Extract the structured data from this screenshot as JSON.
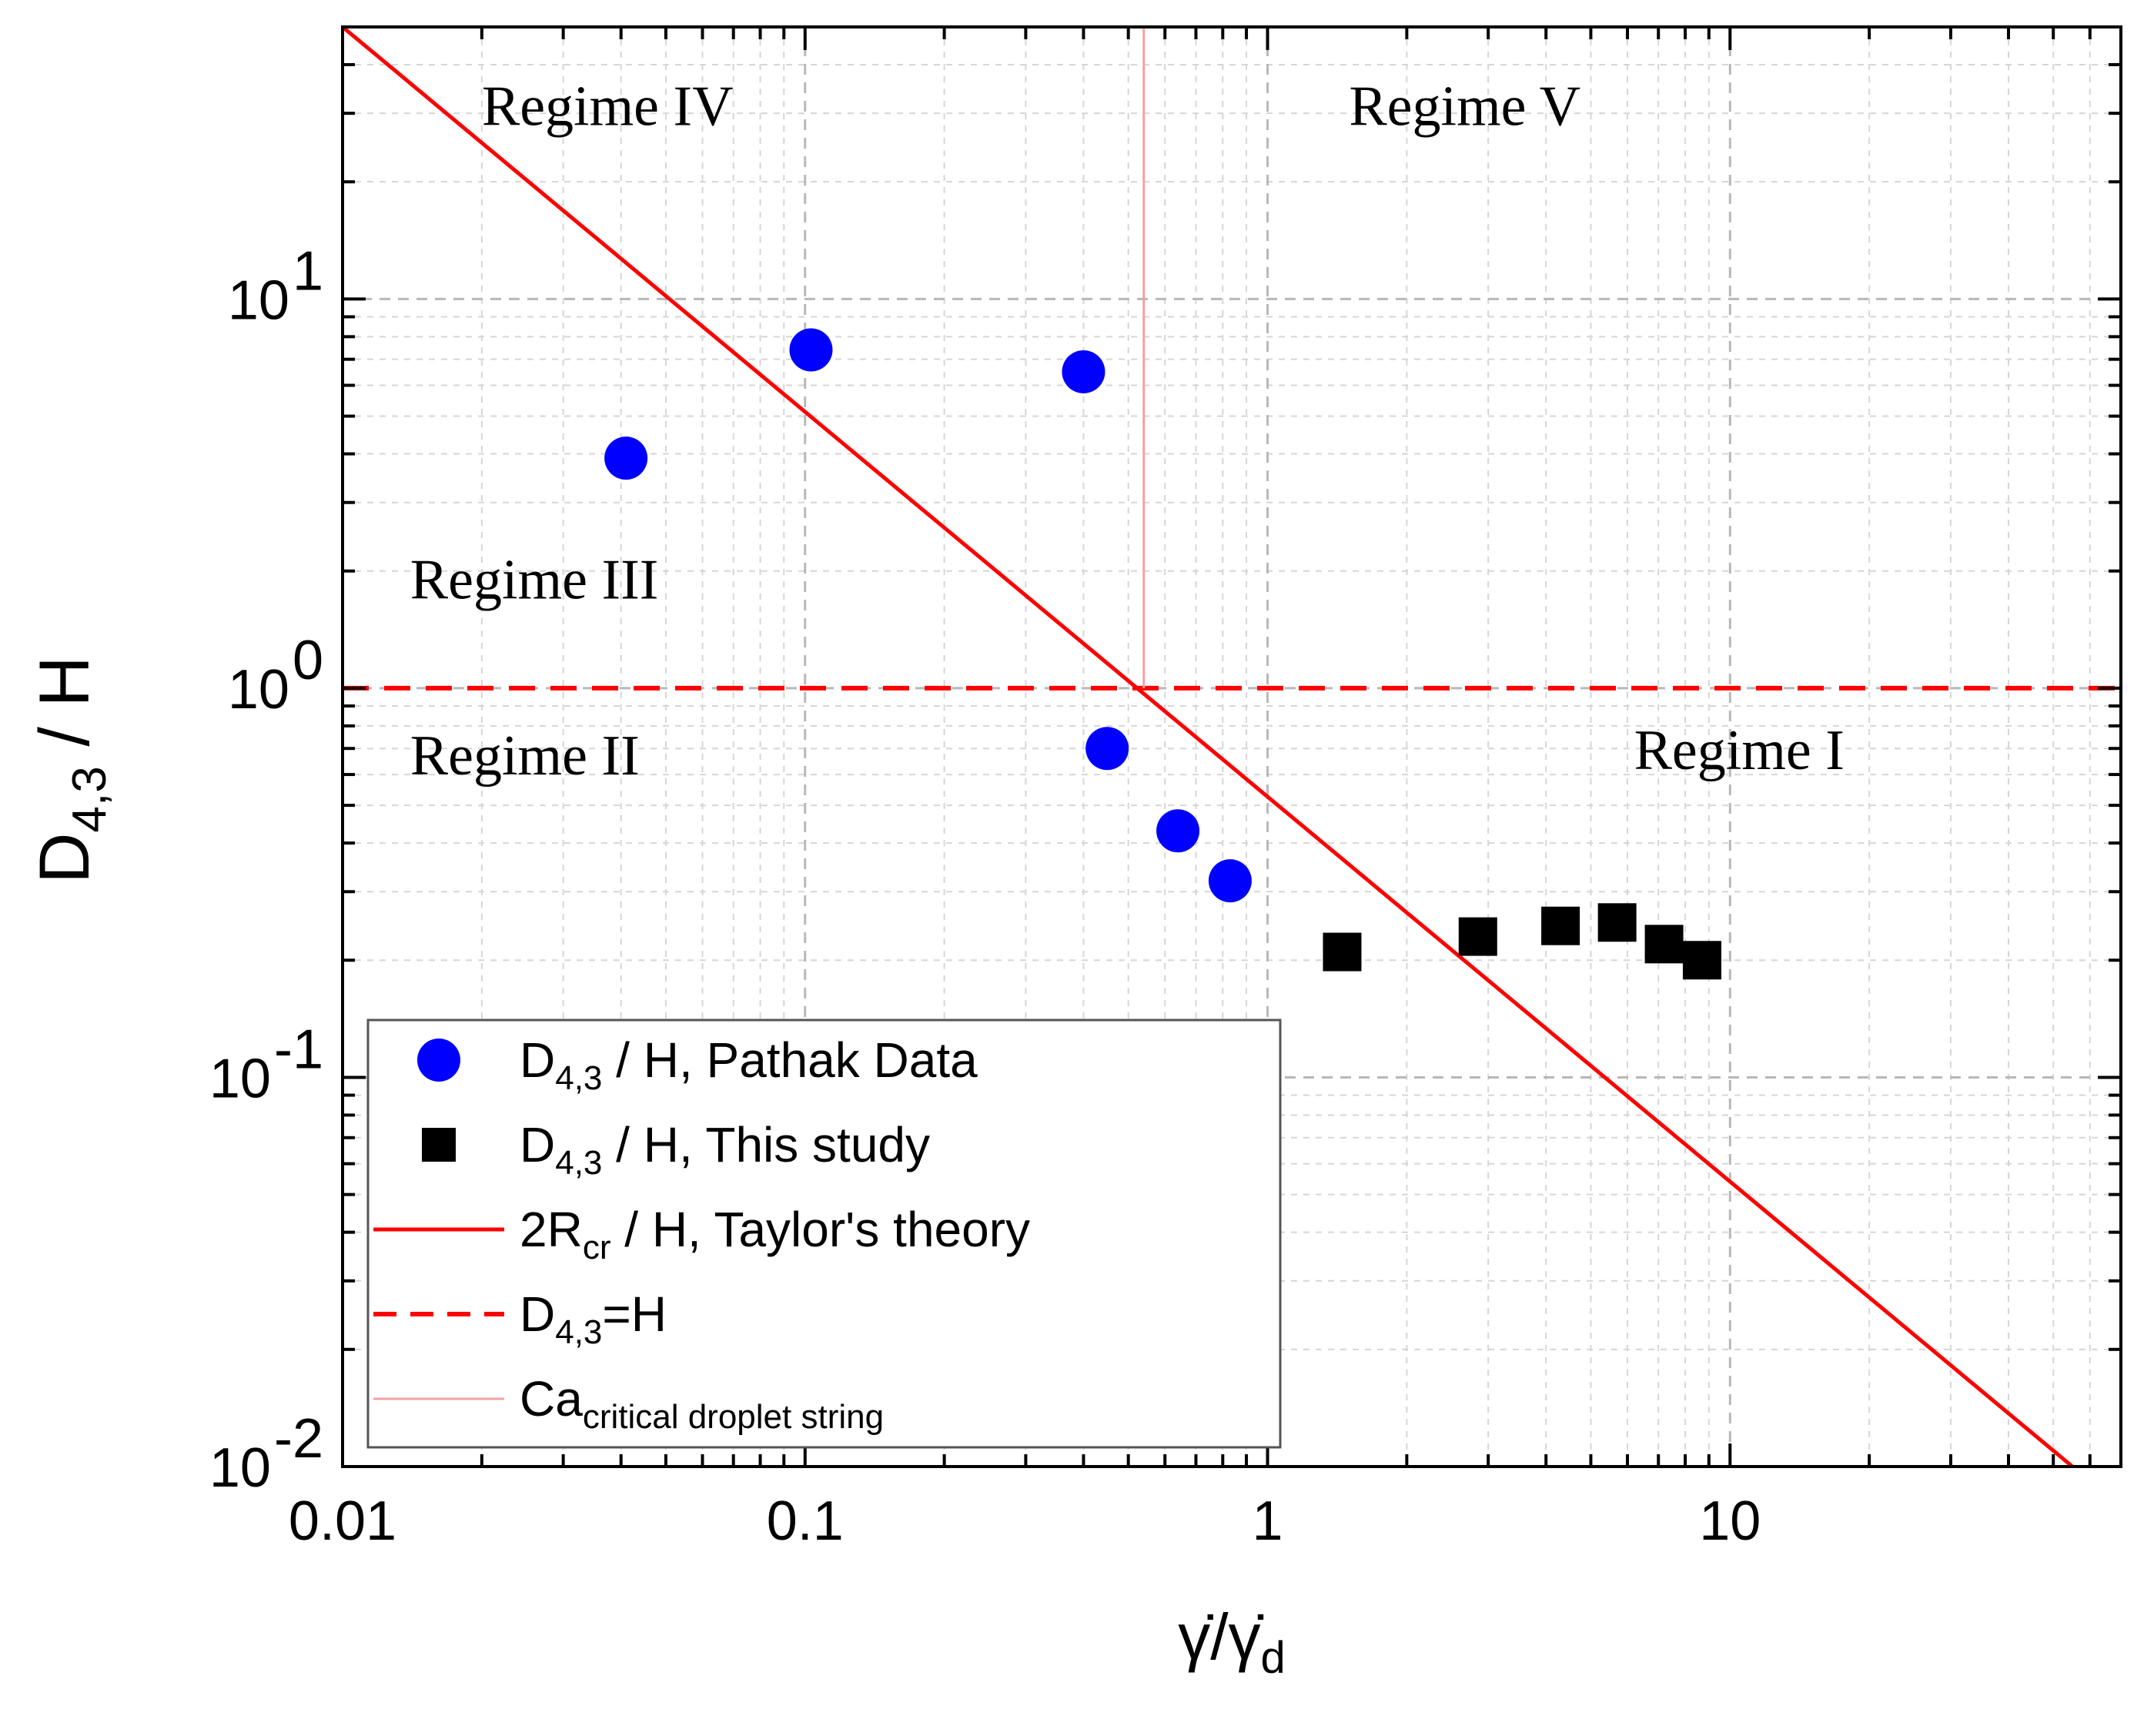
{
  "chart_data": {
    "type": "scatter",
    "x_scale": "log",
    "y_scale": "log",
    "xlim": [
      0.01,
      70
    ],
    "ylim": [
      0.01,
      50
    ],
    "x_ticks": [
      {
        "value": 0.01,
        "label": "0.01"
      },
      {
        "value": 0.1,
        "label": "0.1"
      },
      {
        "value": 1,
        "label": "1"
      },
      {
        "value": 10,
        "label": "10"
      }
    ],
    "y_ticks": [
      {
        "value": 0.01,
        "base": "10",
        "exp": "-2"
      },
      {
        "value": 0.1,
        "base": "10",
        "exp": "-1"
      },
      {
        "value": 1,
        "base": "10",
        "exp": "0"
      },
      {
        "value": 10,
        "base": "10",
        "exp": "1"
      }
    ],
    "xlabel": {
      "main": "γ̇/γ̇",
      "sub": "d"
    },
    "ylabel": {
      "main": "D",
      "sub": "4,3",
      "rest": " / H"
    },
    "grid": true,
    "series": [
      {
        "name": "D4,3 / H, Pathak Data",
        "marker": "circle",
        "color": "#0000ff",
        "x": [
          0.041,
          0.103,
          0.4,
          0.45,
          0.64,
          0.83
        ],
        "y": [
          3.9,
          7.4,
          6.5,
          0.7,
          0.43,
          0.32
        ]
      },
      {
        "name": "D4,3 / H, This study",
        "marker": "square",
        "color": "#000000",
        "x": [
          1.45,
          2.85,
          4.3,
          5.7,
          7.2,
          8.7
        ],
        "y": [
          0.21,
          0.23,
          0.245,
          0.25,
          0.22,
          0.2
        ]
      },
      {
        "name": "2Rcr / H, Taylor's theory",
        "marker": "line",
        "color": "#ff0000",
        "x": [
          0.01,
          55
        ],
        "y": [
          50,
          0.01
        ]
      },
      {
        "name": "D4,3=H",
        "marker": "dashed-line",
        "color": "#ff0000",
        "x": [
          0.01,
          70
        ],
        "y": [
          1,
          1
        ]
      },
      {
        "name": "Ca critical droplet string",
        "marker": "vertical-line",
        "color": "#f4a0a0",
        "x": [
          0.54,
          0.54
        ],
        "y": [
          1,
          50
        ]
      }
    ],
    "annotations": [
      {
        "text": "Regime IV",
        "x": 0.02,
        "y": 28
      },
      {
        "text": "Regime V",
        "x": 1.5,
        "y": 28
      },
      {
        "text": "Regime III",
        "x": 0.014,
        "y": 1.7
      },
      {
        "text": "Regime II",
        "x": 0.014,
        "y": 0.6
      },
      {
        "text": "Regime I",
        "x": 6.2,
        "y": 0.62
      }
    ],
    "legend": {
      "position": "bottom-left",
      "entries": [
        {
          "main": "D",
          "sub": "4,3",
          "rest": " / H, Pathak Data"
        },
        {
          "main": "D",
          "sub": "4,3",
          "rest": " / H, This study"
        },
        {
          "main": "2R",
          "sub": "cr",
          "rest": " / H, Taylor's theory"
        },
        {
          "main": "D",
          "sub": "4,3",
          "rest": "=H"
        },
        {
          "main": "Ca",
          "sub": "critical droplet string",
          "rest": ""
        }
      ]
    }
  }
}
